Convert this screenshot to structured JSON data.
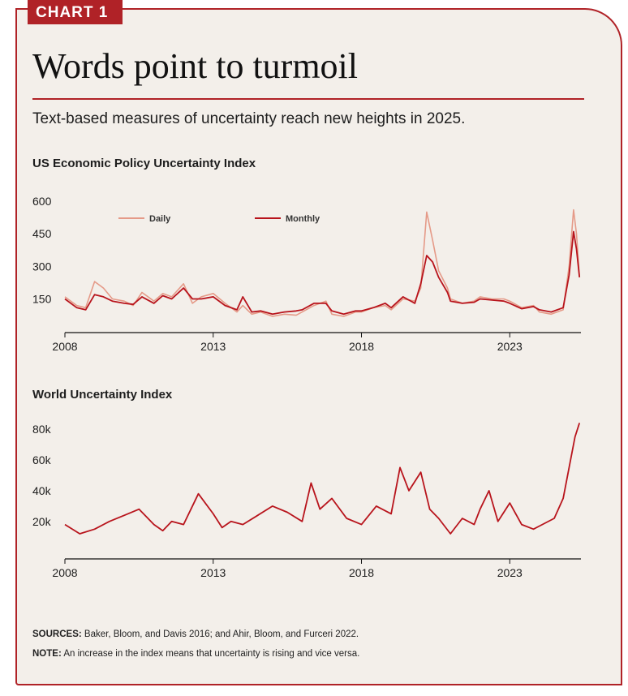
{
  "badge": "CHART 1",
  "title": "Words point to turmoil",
  "subtitle": "Text-based measures of uncertainty reach new heights in 2025.",
  "colors": {
    "accent": "#b02227",
    "daily": "#e59a88",
    "monthly": "#b8141c",
    "background": "#f3efea"
  },
  "chart_data": [
    {
      "type": "line",
      "title": "US Economic Policy Uncertainty Index",
      "xlabel": "",
      "ylabel": "",
      "xlim": [
        2008,
        2025.4
      ],
      "ylim": [
        40,
        600
      ],
      "x_ticks": [
        "2008",
        "2013",
        "2018",
        "2023"
      ],
      "x_tick_values": [
        2008,
        2013,
        2018,
        2023
      ],
      "y_ticks": [
        "600",
        "450",
        "300",
        "150"
      ],
      "y_tick_values": [
        600,
        450,
        300,
        150
      ],
      "grid": false,
      "legend": "top-left",
      "x": [
        2008,
        2008.4,
        2008.7,
        2009,
        2009.3,
        2009.6,
        2010,
        2010.3,
        2010.6,
        2011,
        2011.3,
        2011.6,
        2012,
        2012.3,
        2012.6,
        2013,
        2013.4,
        2013.8,
        2014,
        2014.3,
        2014.6,
        2015,
        2015.4,
        2015.8,
        2016,
        2016.4,
        2016.8,
        2017,
        2017.4,
        2017.8,
        2018,
        2018.4,
        2018.8,
        2019,
        2019.4,
        2019.8,
        2020,
        2020.2,
        2020.4,
        2020.6,
        2020.9,
        2021,
        2021.4,
        2021.8,
        2022,
        2022.4,
        2022.8,
        2023,
        2023.4,
        2023.8,
        2024,
        2024.4,
        2024.8,
        2025,
        2025.15,
        2025.25,
        2025.35
      ],
      "series": [
        {
          "name": "Daily",
          "values": [
            160,
            120,
            110,
            230,
            200,
            150,
            140,
            120,
            180,
            140,
            175,
            160,
            220,
            130,
            160,
            175,
            130,
            90,
            120,
            80,
            90,
            70,
            80,
            75,
            90,
            120,
            140,
            80,
            70,
            90,
            90,
            110,
            120,
            100,
            150,
            140,
            200,
            550,
            420,
            280,
            200,
            150,
            130,
            140,
            160,
            150,
            150,
            140,
            110,
            120,
            90,
            80,
            100,
            300,
            560,
            450,
            250
          ]
        },
        {
          "name": "Monthly",
          "values": [
            150,
            110,
            100,
            170,
            160,
            140,
            130,
            125,
            160,
            130,
            165,
            150,
            200,
            150,
            150,
            160,
            120,
            100,
            160,
            90,
            95,
            80,
            90,
            95,
            100,
            130,
            130,
            95,
            80,
            95,
            95,
            110,
            130,
            110,
            160,
            130,
            220,
            350,
            320,
            250,
            180,
            140,
            130,
            135,
            150,
            145,
            140,
            130,
            105,
            115,
            100,
            90,
            110,
            260,
            460,
            380,
            250
          ]
        }
      ]
    },
    {
      "type": "line",
      "title": "World Uncertainty Index",
      "xlabel": "",
      "ylabel": "",
      "xlim": [
        2008,
        2025.4
      ],
      "ylim": [
        2000,
        90000
      ],
      "x_ticks": [
        "2008",
        "2013",
        "2018",
        "2023"
      ],
      "x_tick_values": [
        2008,
        2013,
        2018,
        2023
      ],
      "y_ticks": [
        "80k",
        "60k",
        "40k",
        "20k"
      ],
      "y_tick_values": [
        80000,
        60000,
        40000,
        20000
      ],
      "grid": false,
      "series": [
        {
          "name": "World Uncertainty Index",
          "x": [
            2008,
            2008.5,
            2009,
            2009.5,
            2010,
            2010.5,
            2011,
            2011.3,
            2011.6,
            2012,
            2012.5,
            2013,
            2013.3,
            2013.6,
            2014,
            2014.5,
            2015,
            2015.5,
            2016,
            2016.3,
            2016.6,
            2017,
            2017.5,
            2018,
            2018.5,
            2019,
            2019.3,
            2019.6,
            2020,
            2020.3,
            2020.6,
            2021,
            2021.4,
            2021.8,
            2022,
            2022.3,
            2022.6,
            2023,
            2023.4,
            2023.8,
            2024,
            2024.5,
            2024.8,
            2025,
            2025.2,
            2025.35
          ],
          "values": [
            18000,
            12000,
            15000,
            20000,
            24000,
            28000,
            18000,
            14000,
            20000,
            18000,
            38000,
            25000,
            16000,
            20000,
            18000,
            24000,
            30000,
            26000,
            20000,
            45000,
            28000,
            35000,
            22000,
            18000,
            30000,
            25000,
            55000,
            40000,
            52000,
            28000,
            22000,
            12000,
            22000,
            18000,
            28000,
            40000,
            20000,
            32000,
            18000,
            15000,
            17000,
            22000,
            35000,
            55000,
            75000,
            84000
          ]
        }
      ]
    }
  ],
  "footer": {
    "sources_label": "SOURCES:",
    "sources_text": "Baker, Bloom, and Davis 2016; and Ahir, Bloom, and Furceri 2022.",
    "note_label": "NOTE:",
    "note_text": "An increase in the index means that uncertainty is rising and vice versa."
  }
}
